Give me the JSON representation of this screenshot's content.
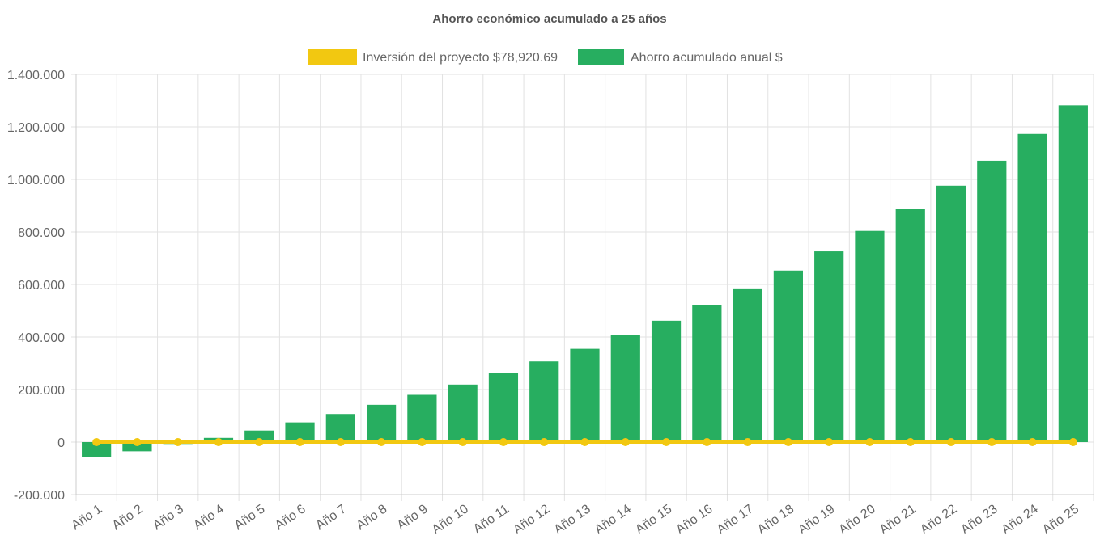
{
  "chart_data": {
    "type": "bar",
    "title": "Ahorro económico acumulado a 25 años",
    "categories": [
      "Año 1",
      "Año 2",
      "Año 3",
      "Año 4",
      "Año 5",
      "Año 6",
      "Año 7",
      "Año 8",
      "Año 9",
      "Año 10",
      "Año 11",
      "Año 12",
      "Año 13",
      "Año 14",
      "Año 15",
      "Año 16",
      "Año 17",
      "Año 18",
      "Año 19",
      "Año 20",
      "Año 21",
      "Año 22",
      "Año 23",
      "Año 24",
      "Año 25"
    ],
    "ylim": [
      -200000,
      1400000
    ],
    "yticks": [
      {
        "value": 1400000,
        "label": "1.400.000"
      },
      {
        "value": 1200000,
        "label": "1.200.000"
      },
      {
        "value": 1000000,
        "label": "1.000.000"
      },
      {
        "value": 800000,
        "label": "800.000"
      },
      {
        "value": 600000,
        "label": "600.000"
      },
      {
        "value": 400000,
        "label": "400.000"
      },
      {
        "value": 200000,
        "label": "200.000"
      },
      {
        "value": 0,
        "label": "0"
      },
      {
        "value": -200000,
        "label": "-200.000"
      }
    ],
    "grid": true,
    "legend_position": "top",
    "series": [
      {
        "name": "Inversión del proyecto $78,920.69",
        "kind": "line",
        "color": "#f2c811",
        "values": [
          0,
          0,
          0,
          0,
          0,
          0,
          0,
          0,
          0,
          0,
          0,
          0,
          0,
          0,
          0,
          0,
          0,
          0,
          0,
          0,
          0,
          0,
          0,
          0,
          0
        ]
      },
      {
        "name": "Ahorro acumulado anual $",
        "kind": "bar",
        "color": "#27ae60",
        "values": [
          -57000,
          -35000,
          -7000,
          16000,
          44000,
          75000,
          107000,
          142000,
          180000,
          219000,
          262000,
          307000,
          355000,
          407000,
          462000,
          521000,
          585000,
          653000,
          726000,
          804000,
          887000,
          976000,
          1071000,
          1173000,
          1282000
        ]
      }
    ]
  }
}
